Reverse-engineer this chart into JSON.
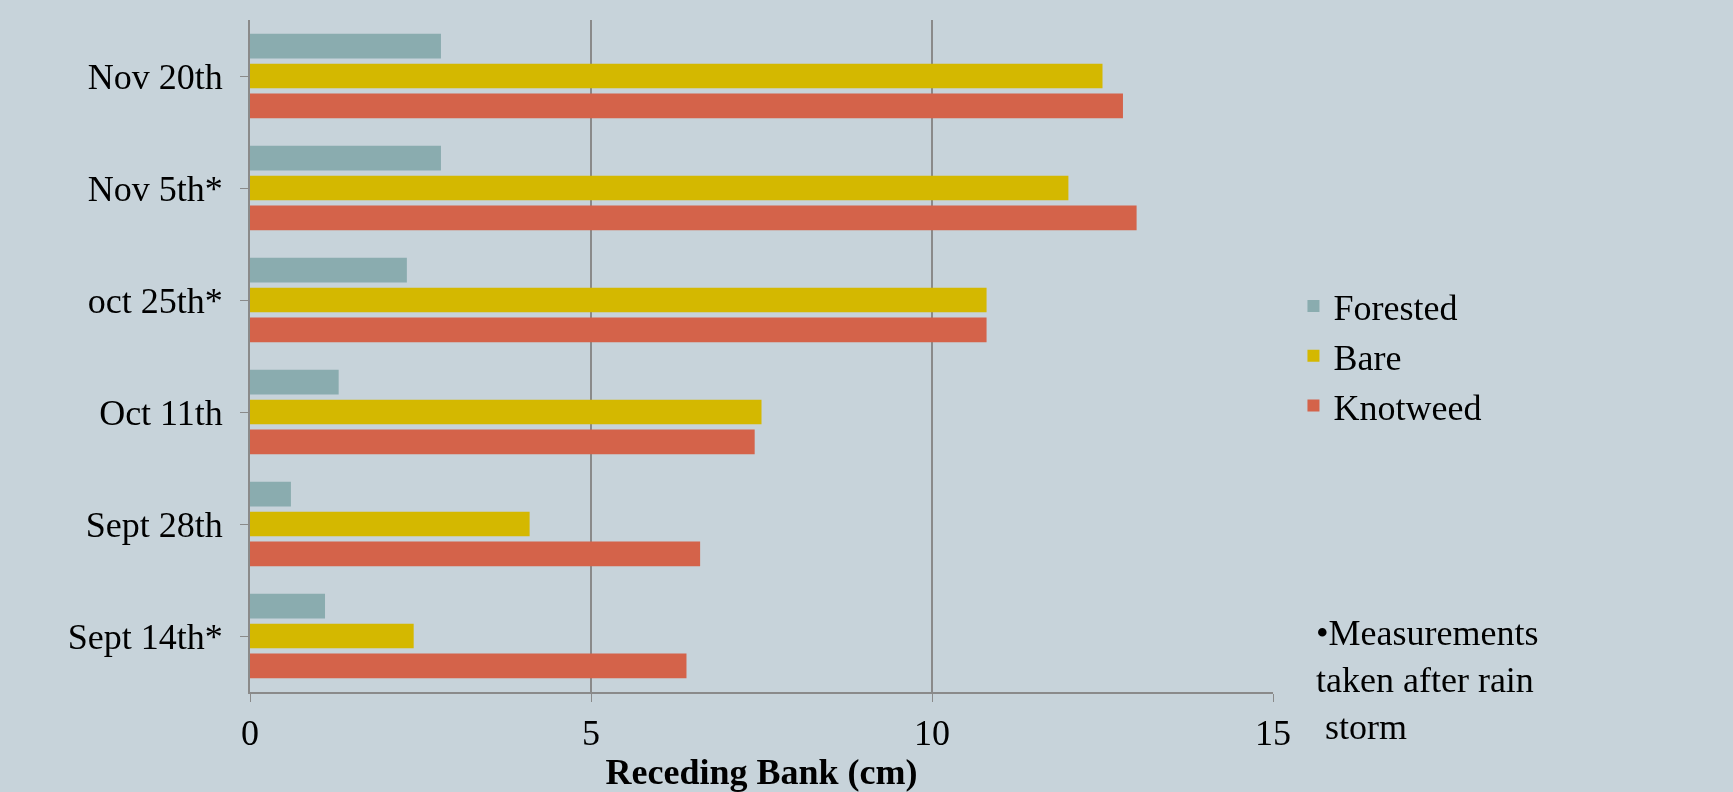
{
  "chart_data": {
    "type": "bar",
    "orientation": "horizontal",
    "xlabel": "Receding Bank (cm)",
    "categories": [
      "Nov 20th",
      "Nov 5th*",
      "oct 25th*",
      "Oct 11th",
      "Sept 28th",
      "Sept 14th*"
    ],
    "series": [
      {
        "name": "Forested",
        "color": "#8aacaf",
        "values": [
          2.8,
          2.8,
          2.3,
          1.3,
          0.6,
          1.1
        ]
      },
      {
        "name": "Bare",
        "color": "#d4b800",
        "values": [
          12.5,
          12.0,
          10.8,
          7.5,
          4.1,
          2.4
        ]
      },
      {
        "name": "Knotweed",
        "color": "#d4634a",
        "values": [
          12.8,
          13.0,
          10.8,
          7.4,
          6.6,
          6.4
        ]
      }
    ],
    "xlim": [
      0,
      15
    ],
    "xticks": [
      0,
      5,
      10,
      15
    ],
    "grid": "x",
    "legend": "right",
    "annotations": [
      "•Measurements taken after rain storm"
    ]
  }
}
